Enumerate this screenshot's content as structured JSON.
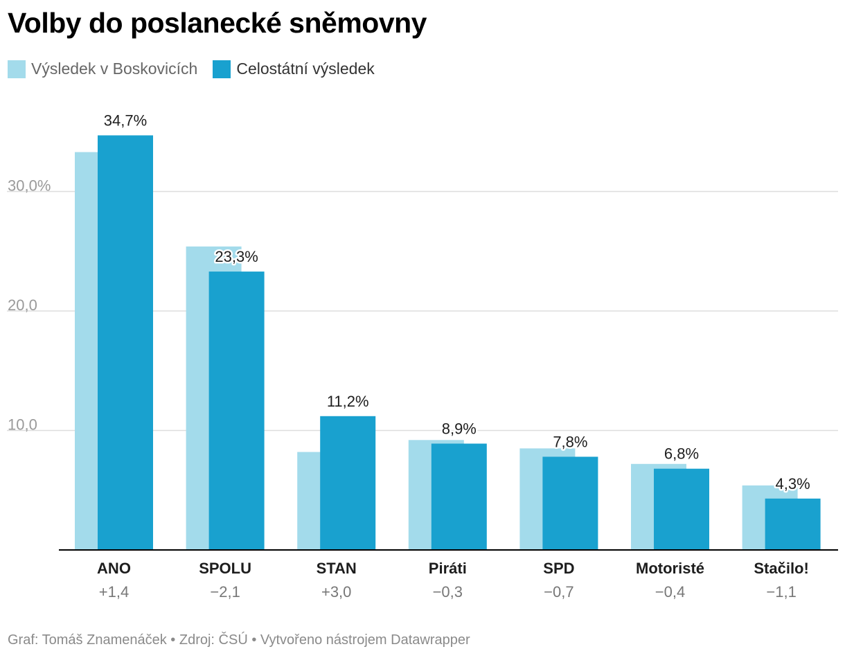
{
  "title": "Volby do poslanecké sněmovny",
  "legend": {
    "local_label": "Výsledek v Boskovicích",
    "national_label": "Celostátní výsledek"
  },
  "colors": {
    "local": "#a3dbeb",
    "national": "#19a1cf",
    "grid": "#dddddd",
    "axis": "#000000",
    "tick_text": "#9a9a9a",
    "diff_text": "#777777"
  },
  "chart_data": {
    "type": "bar",
    "categories": [
      "ANO",
      "SPOLU",
      "STAN",
      "Piráti",
      "SPD",
      "Motoristé",
      "Stačilo!"
    ],
    "series": [
      {
        "name": "Výsledek v Boskovicích",
        "values": [
          33.3,
          25.4,
          8.2,
          9.2,
          8.5,
          7.2,
          5.4
        ]
      },
      {
        "name": "Celostátní výsledek",
        "values": [
          34.7,
          23.3,
          11.2,
          8.9,
          7.8,
          6.8,
          4.3
        ]
      }
    ],
    "data_labels": [
      "34,7%",
      "23,3%",
      "11,2%",
      "8,9%",
      "7,8%",
      "6,8%",
      "4,3%"
    ],
    "differences": [
      "+1,4",
      "−2,1",
      "+3,0",
      "−0,3",
      "−0,7",
      "−0,4",
      "−1,1"
    ],
    "y_ticks": [
      {
        "value": 30,
        "label": "30,0%"
      },
      {
        "value": 20,
        "label": "20,0"
      },
      {
        "value": 10,
        "label": "10,0"
      }
    ],
    "ylim": [
      0,
      40
    ],
    "title": "Volby do poslanecké sněmovny",
    "xlabel": "",
    "ylabel": "",
    "grid": true
  },
  "footer": {
    "author": "Graf: Tomáš Znamenáček",
    "separator1": " • ",
    "source": "Zdroj: ČSÚ",
    "separator2": " • ",
    "tool": "Vytvořeno nástrojem Datawrapper"
  }
}
